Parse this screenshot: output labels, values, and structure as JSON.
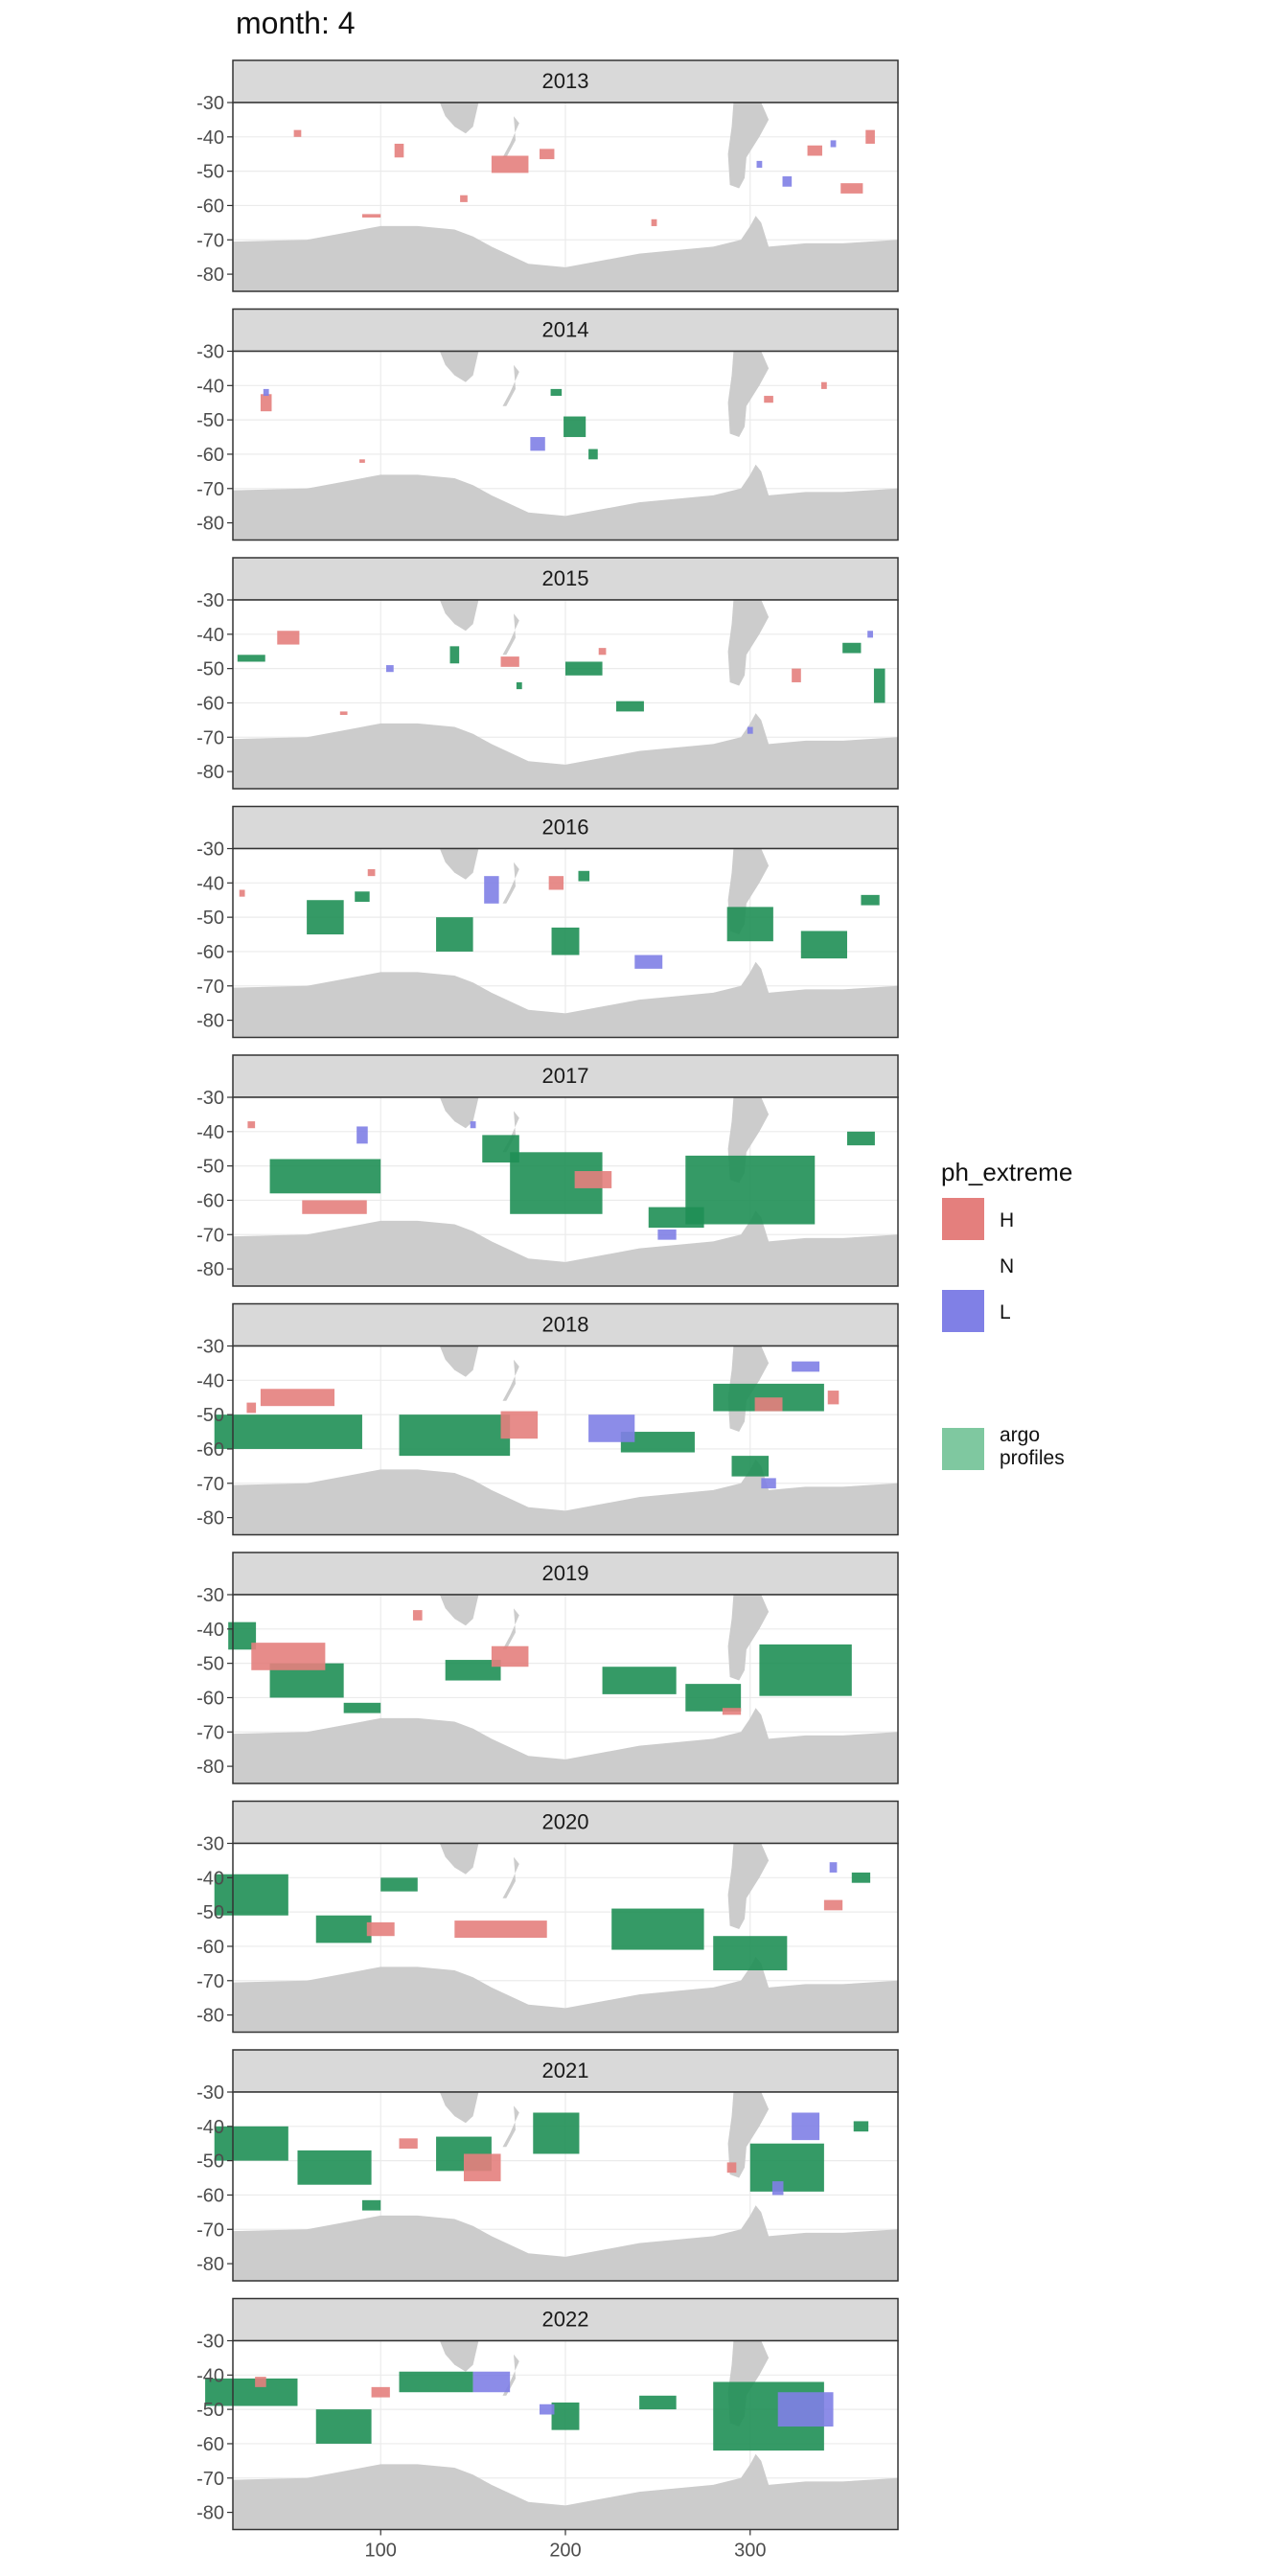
{
  "title": "month: 4",
  "chart_data": {
    "type": "heatmap",
    "title": "month: 4",
    "xlabel": "",
    "ylabel": "",
    "xlim": [
      20,
      380
    ],
    "ylim": [
      -85,
      -30
    ],
    "x_ticks": [
      100,
      200,
      300
    ],
    "y_ticks": [
      -30,
      -40,
      -50,
      -60,
      -70,
      -80
    ],
    "grid": true,
    "legend": {
      "title": "ph_extreme",
      "placement": "right",
      "entries": [
        {
          "label": "H",
          "color": "#e47f7d"
        },
        {
          "label": "N",
          "color": "#ffffff"
        },
        {
          "label": "L",
          "color": "#8080e6"
        },
        {
          "label": "argo profiles",
          "color": "#7fc8a0"
        }
      ]
    },
    "colors": {
      "H": "#e47f7d",
      "L": "#8080e6",
      "argo": "#1f8f55",
      "land": "#cccccc",
      "strip": "#d9d9d9"
    },
    "panels": [
      {
        "year": "2013",
        "H": [
          [
            55,
            -39,
            4,
            2
          ],
          [
            110,
            -44,
            5,
            4
          ],
          [
            170,
            -48,
            20,
            5
          ],
          [
            190,
            -45,
            8,
            3
          ],
          [
            95,
            -63,
            10,
            1
          ],
          [
            145,
            -58,
            4,
            2
          ],
          [
            335,
            -44,
            8,
            3
          ],
          [
            365,
            -40,
            5,
            4
          ],
          [
            355,
            -55,
            12,
            3
          ],
          [
            248,
            -65,
            3,
            2
          ]
        ],
        "L": [
          [
            320,
            -53,
            5,
            3
          ],
          [
            345,
            -42,
            3,
            2
          ],
          [
            305,
            -48,
            3,
            2
          ]
        ],
        "A": []
      },
      {
        "year": "2014",
        "H": [
          [
            38,
            -45,
            6,
            5
          ],
          [
            310,
            -44,
            5,
            2
          ],
          [
            90,
            -62,
            3,
            1
          ],
          [
            340,
            -40,
            3,
            2
          ]
        ],
        "L": [
          [
            185,
            -57,
            8,
            4
          ],
          [
            38,
            -42,
            3,
            2
          ]
        ],
        "A": [
          [
            205,
            -52,
            12,
            6
          ],
          [
            195,
            -42,
            6,
            2
          ],
          [
            215,
            -60,
            5,
            3
          ]
        ]
      },
      {
        "year": "2015",
        "H": [
          [
            50,
            -41,
            12,
            4
          ],
          [
            170,
            -48,
            10,
            3
          ],
          [
            325,
            -52,
            5,
            4
          ],
          [
            80,
            -63,
            4,
            1
          ],
          [
            220,
            -45,
            4,
            2
          ]
        ],
        "L": [
          [
            105,
            -50,
            4,
            2
          ],
          [
            300,
            -68,
            3,
            2
          ],
          [
            365,
            -40,
            3,
            2
          ]
        ],
        "A": [
          [
            30,
            -47,
            15,
            2
          ],
          [
            210,
            -50,
            20,
            4
          ],
          [
            235,
            -61,
            15,
            3
          ],
          [
            370,
            -55,
            6,
            10
          ],
          [
            355,
            -44,
            10,
            3
          ],
          [
            140,
            -46,
            5,
            5
          ],
          [
            175,
            -55,
            3,
            2
          ]
        ]
      },
      {
        "year": "2016",
        "H": [
          [
            195,
            -40,
            8,
            4
          ],
          [
            25,
            -43,
            3,
            2
          ],
          [
            95,
            -37,
            4,
            2
          ]
        ],
        "L": [
          [
            160,
            -42,
            8,
            8
          ],
          [
            245,
            -63,
            15,
            4
          ]
        ],
        "A": [
          [
            70,
            -50,
            20,
            10
          ],
          [
            140,
            -55,
            20,
            10
          ],
          [
            200,
            -57,
            15,
            8
          ],
          [
            300,
            -52,
            25,
            10
          ],
          [
            340,
            -58,
            25,
            8
          ],
          [
            365,
            -45,
            10,
            3
          ],
          [
            210,
            -38,
            6,
            3
          ],
          [
            90,
            -44,
            8,
            3
          ]
        ]
      },
      {
        "year": "2017",
        "H": [
          [
            75,
            -62,
            35,
            4
          ],
          [
            215,
            -54,
            20,
            5
          ],
          [
            30,
            -38,
            4,
            2
          ]
        ],
        "L": [
          [
            90,
            -41,
            6,
            5
          ],
          [
            255,
            -70,
            10,
            3
          ],
          [
            150,
            -38,
            3,
            2
          ]
        ],
        "A": [
          [
            70,
            -53,
            60,
            10
          ],
          [
            195,
            -55,
            50,
            18
          ],
          [
            300,
            -57,
            70,
            20
          ],
          [
            260,
            -65,
            30,
            6
          ],
          [
            165,
            -45,
            20,
            8
          ],
          [
            360,
            -42,
            15,
            4
          ]
        ]
      },
      {
        "year": "2018",
        "H": [
          [
            55,
            -45,
            40,
            5
          ],
          [
            175,
            -53,
            20,
            8
          ],
          [
            310,
            -47,
            15,
            4
          ],
          [
            30,
            -48,
            5,
            3
          ],
          [
            345,
            -45,
            6,
            4
          ]
        ],
        "L": [
          [
            225,
            -54,
            25,
            8
          ],
          [
            330,
            -36,
            15,
            3
          ],
          [
            310,
            -70,
            8,
            3
          ]
        ],
        "A": [
          [
            50,
            -55,
            80,
            10
          ],
          [
            140,
            -56,
            60,
            12
          ],
          [
            250,
            -58,
            40,
            6
          ],
          [
            310,
            -45,
            60,
            8
          ],
          [
            300,
            -65,
            20,
            6
          ]
        ]
      },
      {
        "year": "2019",
        "H": [
          [
            50,
            -48,
            40,
            8
          ],
          [
            170,
            -48,
            20,
            6
          ],
          [
            290,
            -64,
            10,
            2
          ],
          [
            120,
            -36,
            5,
            3
          ]
        ],
        "A": [
          [
            25,
            -42,
            15,
            8
          ],
          [
            60,
            -55,
            40,
            10
          ],
          [
            150,
            -52,
            30,
            6
          ],
          [
            240,
            -55,
            40,
            8
          ],
          [
            330,
            -52,
            50,
            15
          ],
          [
            280,
            -60,
            30,
            8
          ],
          [
            90,
            -63,
            20,
            3
          ]
        ]
      },
      {
        "year": "2020",
        "H": [
          [
            165,
            -55,
            50,
            5
          ],
          [
            345,
            -48,
            10,
            3
          ],
          [
            100,
            -55,
            15,
            4
          ]
        ],
        "L": [
          [
            345,
            -37,
            4,
            3
          ]
        ],
        "A": [
          [
            30,
            -45,
            40,
            12
          ],
          [
            80,
            -55,
            30,
            8
          ],
          [
            250,
            -55,
            50,
            12
          ],
          [
            300,
            -62,
            40,
            10
          ],
          [
            110,
            -42,
            20,
            4
          ],
          [
            360,
            -40,
            10,
            3
          ]
        ]
      },
      {
        "year": "2021",
        "H": [
          [
            155,
            -52,
            20,
            8
          ],
          [
            115,
            -45,
            10,
            3
          ],
          [
            290,
            -52,
            5,
            3
          ]
        ],
        "L": [
          [
            330,
            -40,
            15,
            8
          ],
          [
            315,
            -58,
            6,
            4
          ]
        ],
        "A": [
          [
            30,
            -45,
            40,
            10
          ],
          [
            75,
            -52,
            40,
            10
          ],
          [
            145,
            -48,
            30,
            10
          ],
          [
            195,
            -42,
            25,
            12
          ],
          [
            320,
            -52,
            40,
            14
          ],
          [
            360,
            -40,
            8,
            3
          ],
          [
            95,
            -63,
            10,
            3
          ]
        ]
      },
      {
        "year": "2022",
        "H": [
          [
            35,
            -42,
            6,
            3
          ],
          [
            100,
            -45,
            10,
            3
          ]
        ],
        "L": [
          [
            160,
            -42,
            20,
            6
          ],
          [
            330,
            -50,
            30,
            10
          ],
          [
            190,
            -50,
            8,
            3
          ]
        ],
        "A": [
          [
            30,
            -45,
            50,
            8
          ],
          [
            80,
            -55,
            30,
            10
          ],
          [
            130,
            -42,
            40,
            6
          ],
          [
            310,
            -52,
            60,
            20
          ],
          [
            250,
            -48,
            20,
            4
          ],
          [
            200,
            -52,
            15,
            8
          ]
        ]
      }
    ]
  }
}
